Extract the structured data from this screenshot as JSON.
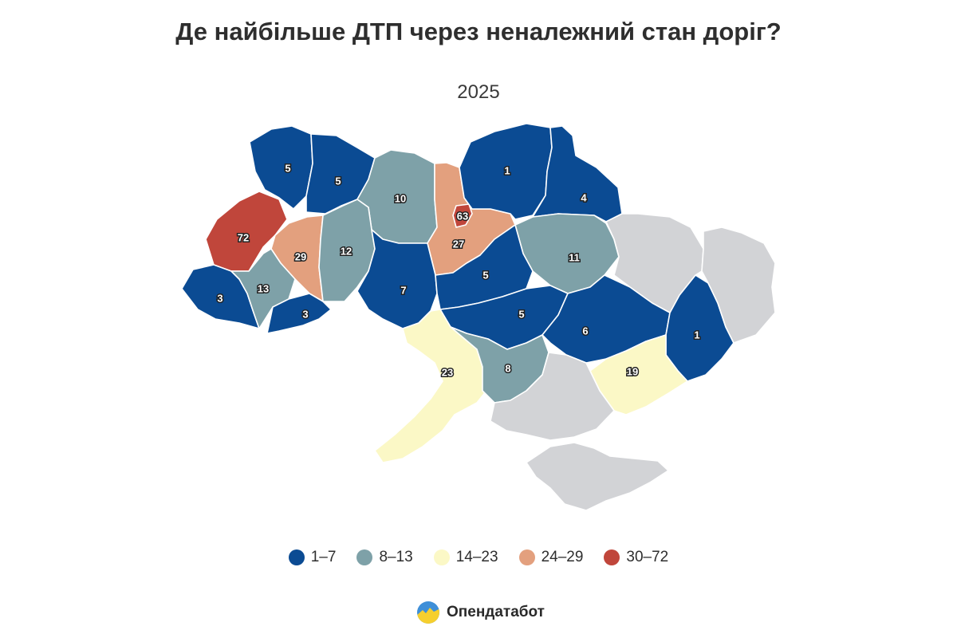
{
  "title": "Де найбільше ДТП через неналежний стан доріг?",
  "subtitle": "2025",
  "brand": "Опендатабот",
  "colors": {
    "bin_1": "#0b4b93",
    "bin_2": "#7ea1a8",
    "bin_3": "#fbf8c6",
    "bin_4": "#e3a07e",
    "bin_5": "#c0463b",
    "no_data": "#d2d3d6"
  },
  "legend": [
    {
      "label": "1–7",
      "color": "#0b4b93"
    },
    {
      "label": "8–13",
      "color": "#7ea1a8"
    },
    {
      "label": "14–23",
      "color": "#fbf8c6"
    },
    {
      "label": "24–29",
      "color": "#e3a07e"
    },
    {
      "label": "30–72",
      "color": "#c0463b"
    }
  ],
  "map_data": {
    "type": "choropleth",
    "regions": [
      {
        "id": "volyn",
        "value": 5
      },
      {
        "id": "rivne",
        "value": 5
      },
      {
        "id": "zhytomyr",
        "value": 10
      },
      {
        "id": "kyiv-oblast",
        "value": 27
      },
      {
        "id": "kyiv-city",
        "value": 63
      },
      {
        "id": "chernihiv",
        "value": 1
      },
      {
        "id": "sumy",
        "value": 4
      },
      {
        "id": "lviv",
        "value": 72
      },
      {
        "id": "ternopil",
        "value": 29
      },
      {
        "id": "khmelnytskyi",
        "value": 12
      },
      {
        "id": "poltava",
        "value": 11
      },
      {
        "id": "zakarpattia",
        "value": 3
      },
      {
        "id": "ivano-frankivsk",
        "value": 13
      },
      {
        "id": "chernivtsi",
        "value": 3
      },
      {
        "id": "vinnytsia",
        "value": 7
      },
      {
        "id": "cherkasy",
        "value": 5
      },
      {
        "id": "kirovohrad",
        "value": 5
      },
      {
        "id": "dnipro",
        "value": 6
      },
      {
        "id": "donetsk",
        "value": 1
      },
      {
        "id": "odesa",
        "value": 23
      },
      {
        "id": "mykolaiv",
        "value": 8
      },
      {
        "id": "zaporizhzhia",
        "value": 19
      },
      {
        "id": "kharkiv",
        "value": null
      },
      {
        "id": "luhansk",
        "value": null
      },
      {
        "id": "kherson",
        "value": null
      },
      {
        "id": "crimea",
        "value": null
      }
    ]
  }
}
